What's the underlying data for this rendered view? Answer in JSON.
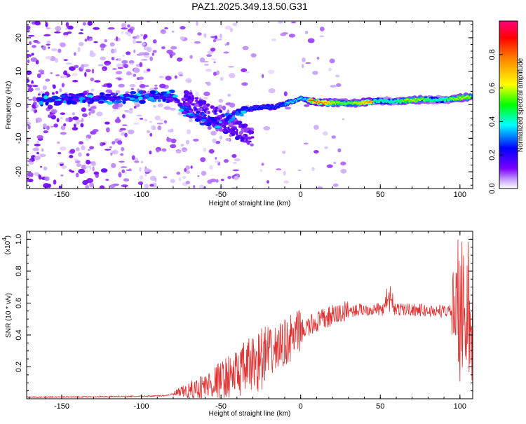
{
  "chart_data": [
    {
      "type": "heatmap",
      "title": "PAZ1.2025.349.13.50.G31",
      "xlabel": "Height of straight line (km)",
      "ylabel": "Frequency (Hz)",
      "xlim": [
        -172,
        108
      ],
      "ylim": [
        -25,
        25
      ],
      "xticks": [
        -150,
        -100,
        -50,
        0,
        50,
        100
      ],
      "yticks": [
        -20,
        -10,
        0,
        10,
        20
      ],
      "colorbar": {
        "label": "Normalized spectral amplitude",
        "range": [
          0,
          1
        ],
        "ticks": [
          "0.0",
          "0.2",
          "0.4",
          "0.6",
          "0.8"
        ],
        "colors": [
          "#ffffff",
          "#7a00ff",
          "#0000ff",
          "#00ffff",
          "#00ff00",
          "#ffff00",
          "#ff0000",
          "#ff0080"
        ]
      },
      "ridge": [
        {
          "x": -150,
          "f": 1.5
        },
        {
          "x": -140,
          "f": 1.8
        },
        {
          "x": -120,
          "f": 2.0
        },
        {
          "x": -105,
          "f": 2.2
        },
        {
          "x": -90,
          "f": 2.5
        },
        {
          "x": -80,
          "f": 2.5
        },
        {
          "x": -72,
          "f": -2.0
        },
        {
          "x": -60,
          "f": -4.5
        },
        {
          "x": -50,
          "f": -5.5
        },
        {
          "x": -40,
          "f": -2.0
        },
        {
          "x": -30,
          "f": -1.0
        },
        {
          "x": -15,
          "f": -0.5
        },
        {
          "x": -5,
          "f": 1.0
        },
        {
          "x": 0,
          "f": 2.0
        },
        {
          "x": 10,
          "f": 0.8
        },
        {
          "x": 20,
          "f": 0.6
        },
        {
          "x": 35,
          "f": 0.5
        },
        {
          "x": 50,
          "f": 1.2
        },
        {
          "x": 60,
          "f": 1.0
        },
        {
          "x": 75,
          "f": 1.5
        },
        {
          "x": 90,
          "f": 1.5
        },
        {
          "x": 100,
          "f": 2.0
        },
        {
          "x": 107,
          "f": 2.5
        }
      ]
    },
    {
      "type": "line",
      "xlabel": "Height of straight line (km)",
      "ylabel": "SNR (10 * v/v)",
      "scale_label": "(x10",
      "scale_exp": "4",
      "scale_close": ")",
      "xlim": [
        -172,
        108
      ],
      "ylim": [
        0,
        1.05
      ],
      "xticks": [
        -150,
        -100,
        -50,
        0,
        50,
        100
      ],
      "yticks": [
        "0.2",
        "0.4",
        "0.6",
        "0.8",
        "1.0"
      ],
      "line_color": "#e03030",
      "envelope": [
        {
          "x": -172,
          "y": 0.01
        },
        {
          "x": -100,
          "y": 0.015
        },
        {
          "x": -85,
          "y": 0.02
        },
        {
          "x": -70,
          "y": 0.05
        },
        {
          "x": -60,
          "y": 0.08
        },
        {
          "x": -50,
          "y": 0.12
        },
        {
          "x": -40,
          "y": 0.16
        },
        {
          "x": -30,
          "y": 0.22
        },
        {
          "x": -20,
          "y": 0.28
        },
        {
          "x": -10,
          "y": 0.35
        },
        {
          "x": 0,
          "y": 0.42
        },
        {
          "x": 10,
          "y": 0.48
        },
        {
          "x": 20,
          "y": 0.52
        },
        {
          "x": 30,
          "y": 0.55
        },
        {
          "x": 40,
          "y": 0.56
        },
        {
          "x": 50,
          "y": 0.56
        },
        {
          "x": 60,
          "y": 0.56
        },
        {
          "x": 70,
          "y": 0.56
        },
        {
          "x": 80,
          "y": 0.55
        },
        {
          "x": 90,
          "y": 0.55
        },
        {
          "x": 100,
          "y": 0.55
        },
        {
          "x": 108,
          "y": 0.56
        }
      ]
    }
  ]
}
